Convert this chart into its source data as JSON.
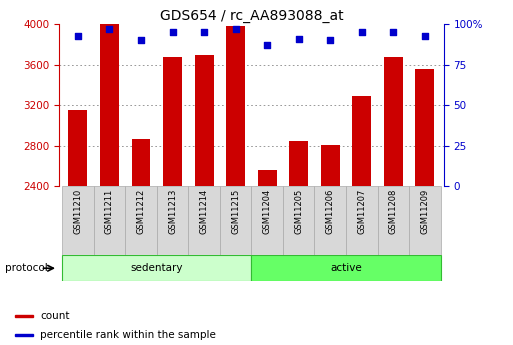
{
  "title": "GDS654 / rc_AA893088_at",
  "samples": [
    "GSM11210",
    "GSM11211",
    "GSM11212",
    "GSM11213",
    "GSM11214",
    "GSM11215",
    "GSM11204",
    "GSM11205",
    "GSM11206",
    "GSM11207",
    "GSM11208",
    "GSM11209"
  ],
  "counts": [
    3150,
    4000,
    2870,
    3680,
    3700,
    3980,
    2560,
    2850,
    2810,
    3290,
    3680,
    3560
  ],
  "percentiles": [
    93,
    97,
    90,
    95,
    95,
    97,
    87,
    91,
    90,
    95,
    95,
    93
  ],
  "groups": [
    "sedentary",
    "sedentary",
    "sedentary",
    "sedentary",
    "sedentary",
    "sedentary",
    "active",
    "active",
    "active",
    "active",
    "active",
    "active"
  ],
  "group_colors": {
    "sedentary": "#ccffcc",
    "active": "#66ff66"
  },
  "bar_color": "#cc0000",
  "dot_color": "#0000cc",
  "ylim_left": [
    2400,
    4000
  ],
  "ylim_right": [
    0,
    100
  ],
  "yticks_left": [
    2400,
    2800,
    3200,
    3600,
    4000
  ],
  "yticks_right": [
    0,
    25,
    50,
    75,
    100
  ],
  "ytick_labels_right": [
    "0",
    "25",
    "50",
    "75",
    "100%"
  ],
  "grid_color": "#888888",
  "bg_color": "#ffffff",
  "title_fontsize": 10,
  "tick_fontsize": 7.5,
  "bar_width": 0.6,
  "protocol_label": "protocol",
  "legend_items": [
    {
      "label": "count",
      "color": "#cc0000"
    },
    {
      "label": "percentile rank within the sample",
      "color": "#0000cc"
    }
  ]
}
